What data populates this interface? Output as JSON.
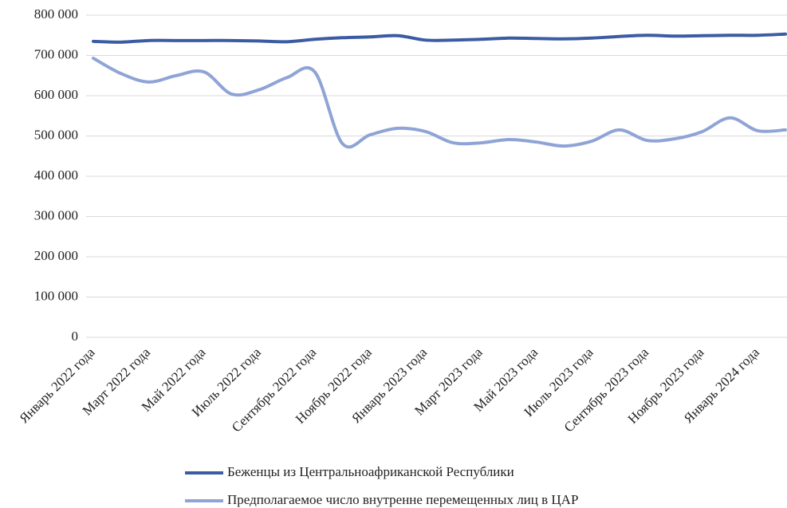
{
  "chart_data": {
    "type": "line",
    "categories": [
      "Январь 2022 года",
      null,
      "Март 2022 года",
      null,
      "Май 2022 года",
      null,
      "Июль 2022 года",
      null,
      "Сентябрь 2022 года",
      null,
      "Ноябрь 2022 года",
      null,
      "Январь 2023 года",
      null,
      "Март 2023 года",
      null,
      "Май 2023 года",
      null,
      "Июль 2023 года",
      null,
      "Сентябрь 2023 года",
      null,
      "Ноябрь 2023 года",
      null,
      "Январь 2024 года",
      null
    ],
    "series": [
      {
        "name": "Беженцы из Центральноафриканской Республики",
        "color": "#3b5ca3",
        "values": [
          735000,
          733000,
          737000,
          737000,
          737000,
          737000,
          736000,
          734000,
          740000,
          744000,
          746000,
          749000,
          738000,
          738000,
          740000,
          743000,
          742000,
          741000,
          743000,
          747000,
          750000,
          748000,
          749000,
          750000,
          750000,
          753000
        ]
      },
      {
        "name": "Предполагаемое число внутренне перемещенных лиц в ЦАР",
        "color": "#8fa4d6",
        "values": [
          693000,
          655000,
          634000,
          650000,
          659000,
          604000,
          615000,
          645000,
          659000,
          481000,
          503000,
          519000,
          511000,
          483000,
          483000,
          491000,
          485000,
          475000,
          487000,
          515000,
          489000,
          493000,
          511000,
          545000,
          513000,
          515000
        ]
      }
    ],
    "ylim": [
      0,
      800000
    ],
    "yticks": [
      0,
      {
        "value": 100000,
        "label": "100 000"
      },
      {
        "value": 200000,
        "label": "200 000"
      },
      {
        "value": 300000,
        "label": "300 000"
      },
      {
        "value": 400000,
        "label": "400 000"
      },
      {
        "value": 500000,
        "label": "500 000"
      },
      {
        "value": 600000,
        "label": "600 000"
      },
      {
        "value": 700000,
        "label": "700 000"
      },
      {
        "value": 800000,
        "label": "800 000"
      }
    ],
    "grid": true,
    "legend": "bottom"
  }
}
